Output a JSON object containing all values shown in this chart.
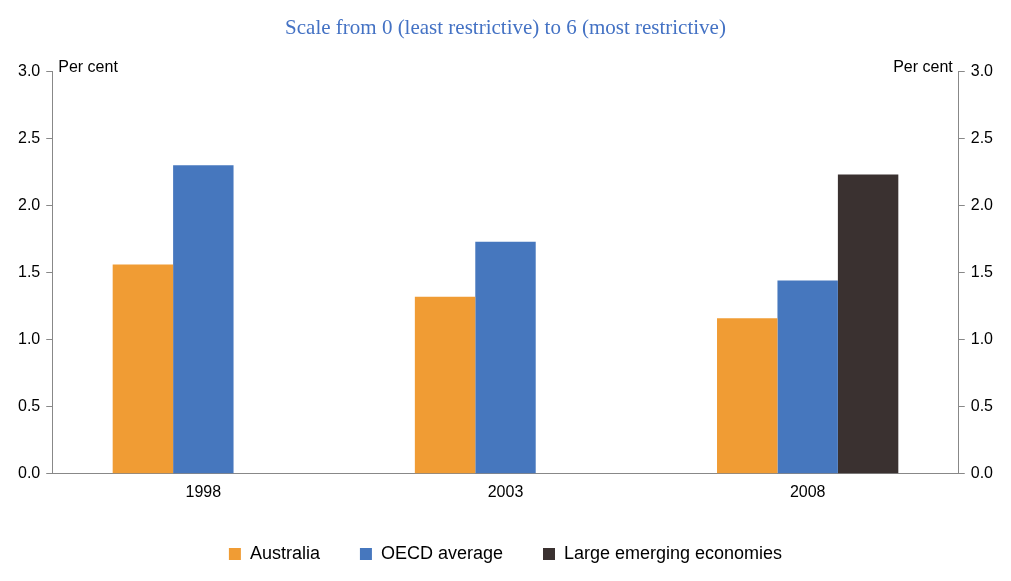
{
  "chart_data": {
    "type": "bar",
    "title": "Scale from 0 (least restrictive) to 6 (most restrictive)",
    "ylabel": "Per cent",
    "y2label": "Per cent",
    "categories": [
      "1998",
      "2003",
      "2008"
    ],
    "series": [
      {
        "name": "Australia",
        "color": "#f09c34",
        "values": [
          1.56,
          1.32,
          1.16
        ]
      },
      {
        "name": "OECD average",
        "color": "#4677be",
        "values": [
          2.3,
          1.73,
          1.44
        ]
      },
      {
        "name": "Large emerging economies",
        "color": "#3a3130",
        "values": [
          null,
          null,
          2.23
        ]
      }
    ],
    "ylim": [
      0,
      3
    ],
    "yticks": [
      {
        "value": 0,
        "label": "0.0"
      },
      0.5,
      {
        "value": 1,
        "label": "1.0"
      },
      1.5,
      {
        "value": 2,
        "label": "2.0"
      },
      2.5,
      {
        "value": 3,
        "label": "3.0"
      }
    ],
    "y2lim": [
      0,
      3
    ],
    "y2ticks": [
      {
        "value": 0,
        "label": "0.0"
      },
      0.5,
      {
        "value": 1,
        "label": "1.0"
      },
      1.5,
      {
        "value": 2,
        "label": "2.0"
      },
      2.5,
      {
        "value": 3,
        "label": "3.0"
      }
    ],
    "grid": false,
    "legend": "bottom"
  }
}
